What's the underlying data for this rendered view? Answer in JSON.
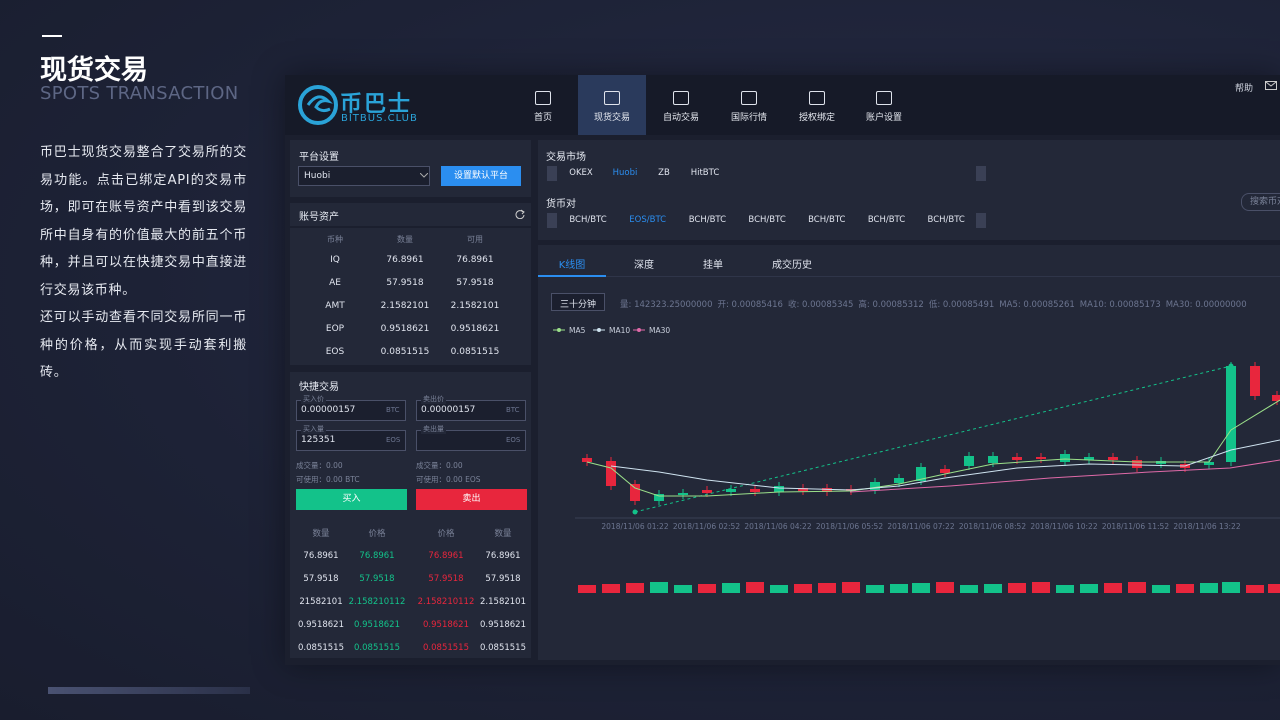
{
  "slide": {
    "title": "现货交易",
    "subtitle": "SPOTS TRANSACTION",
    "paragraphs": [
      "币巴士现货交易整合了交易所的交易功能。点击已绑定API的交易市场，即可在账号资产中看到该交易所中自身有的价值最大的前五个币种，并且可以在快捷交易中直接进行交易该币种。",
      "还可以手动查看不同交易所同一币种的价格，从而实现手动套利搬砖。"
    ]
  },
  "app": {
    "logo": {
      "name": "币巴士",
      "domain": "BITBUS.CLUB"
    },
    "nav": [
      "首页",
      "现货交易",
      "自动交易",
      "国际行情",
      "授权绑定",
      "账户设置"
    ],
    "help": "帮助",
    "platform": {
      "title": "平台设置",
      "selected": "Huobi",
      "button": "设置默认平台"
    },
    "assets": {
      "title": "账号资产",
      "columns": [
        "币种",
        "数量",
        "可用"
      ],
      "rows": [
        [
          "IQ",
          "76.8961",
          "76.8961"
        ],
        [
          "AE",
          "57.9518",
          "57.9518"
        ],
        [
          "AMT",
          "2.1582101",
          "2.1582101"
        ],
        [
          "EOP",
          "0.9518621",
          "0.9518621"
        ],
        [
          "EOS",
          "0.0851515",
          "0.0851515"
        ]
      ]
    },
    "quick": {
      "title": "快捷交易",
      "buy": {
        "price_label": "买入价",
        "price": "0.00000157",
        "price_unit": "BTC",
        "amount_label": "买入量",
        "amount": "125351",
        "amount_unit": "EOS",
        "volume": "成交量：0.00",
        "available": "可使用：0.00 BTC",
        "button": "买入"
      },
      "sell": {
        "price_label": "卖出价",
        "price": "0.00000157",
        "price_unit": "BTC",
        "amount_label": "卖出量",
        "amount_unit": "EOS",
        "volume": "成交量：0.00",
        "available": "可使用：0.00 EOS",
        "button": "卖出"
      },
      "book": {
        "columns": [
          "数量",
          "价格",
          "价格",
          "数量"
        ],
        "rows": [
          [
            "76.8961",
            "76.8961",
            "76.8961",
            "76.8961"
          ],
          [
            "57.9518",
            "57.9518",
            "57.9518",
            "57.9518"
          ],
          [
            "21582101",
            "2.158210112",
            "2.158210112",
            "2.1582101"
          ],
          [
            "0.9518621",
            "0.9518621",
            "0.9518621",
            "0.9518621"
          ],
          [
            "0.0851515",
            "0.0851515",
            "0.0851515",
            "0.0851515"
          ]
        ]
      }
    },
    "market": {
      "title": "交易市场",
      "exchanges": [
        "OKEX",
        "Huobi",
        "ZB",
        "HitBTC"
      ],
      "pair_title": "货币对",
      "pairs": [
        "BCH/BTC",
        "EOS/BTC",
        "BCH/BTC",
        "BCH/BTC",
        "BCH/BTC",
        "BCH/BTC",
        "BCH/BTC"
      ],
      "search": "搜索币对"
    },
    "tabs": [
      "K线图",
      "深度",
      "挂单",
      "成交历史"
    ],
    "kline": {
      "interval": "三十分钟",
      "info": [
        "量: 142323.25000000",
        "开: 0.00085416",
        "收: 0.00085345",
        "高: 0.00085312",
        "低: 0.00085491",
        "MA5: 0.00085261",
        "MA10: 0.00085173",
        "MA30: 0.00000000"
      ],
      "legend": [
        "MA5",
        "MA10",
        "MA30"
      ],
      "x_labels": [
        "2018/11/06 01:22",
        "2018/11/06 02:52",
        "2018/11/06 04:22",
        "2018/11/06 05:52",
        "2018/11/06 07:22",
        "2018/11/06 08:52",
        "2018/11/06 10:22",
        "2018/11/06 11:52",
        "2018/11/06 13:22"
      ]
    }
  }
}
